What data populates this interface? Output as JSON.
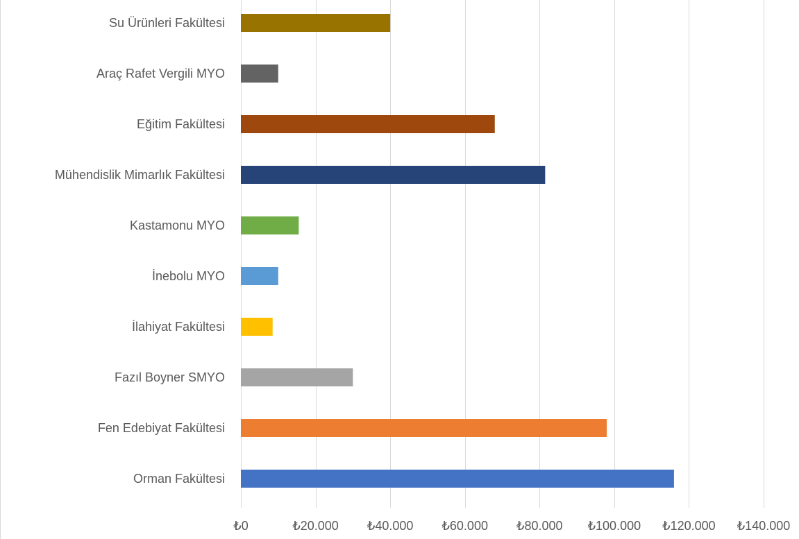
{
  "chart_data": {
    "type": "bar",
    "orientation": "horizontal",
    "title": "",
    "xlabel": "",
    "ylabel": "",
    "xlim": [
      0,
      140000
    ],
    "grid": "vertical",
    "legend": "none",
    "categories": [
      "Su Ürünleri Fakültesi",
      "Araç Rafet Vergili  MYO",
      "Eğitim Fakültesi",
      "Mühendislik Mimarlık Fakültesi",
      "Kastamonu MYO",
      "İnebolu MYO",
      "İlahiyat Fakültesi",
      "Fazıl Boyner SMYO",
      "Fen Edebiyat Fakültesi",
      "Orman Fakültesi"
    ],
    "values": [
      40000,
      10000,
      68000,
      81500,
      15500,
      10000,
      8500,
      30000,
      98000,
      116000
    ],
    "bar_colors": [
      "#997300",
      "#636363",
      "#9E480E",
      "#264478",
      "#70AD47",
      "#5B9BD5",
      "#FFC000",
      "#A5A5A5",
      "#ED7D31",
      "#4472C4"
    ],
    "x_ticks": [
      {
        "value": 0,
        "label": "₺0"
      },
      {
        "value": 20000,
        "label": "₺20.000"
      },
      {
        "value": 40000,
        "label": "₺40.000"
      },
      {
        "value": 60000,
        "label": "₺60.000"
      },
      {
        "value": 80000,
        "label": "₺80.000"
      },
      {
        "value": 100000,
        "label": "₺100.000"
      },
      {
        "value": 120000,
        "label": "₺120.000"
      },
      {
        "value": 140000,
        "label": "₺140.000"
      }
    ],
    "colors": {
      "gridline": "#d9d9d9",
      "label_text": "#595959"
    }
  }
}
